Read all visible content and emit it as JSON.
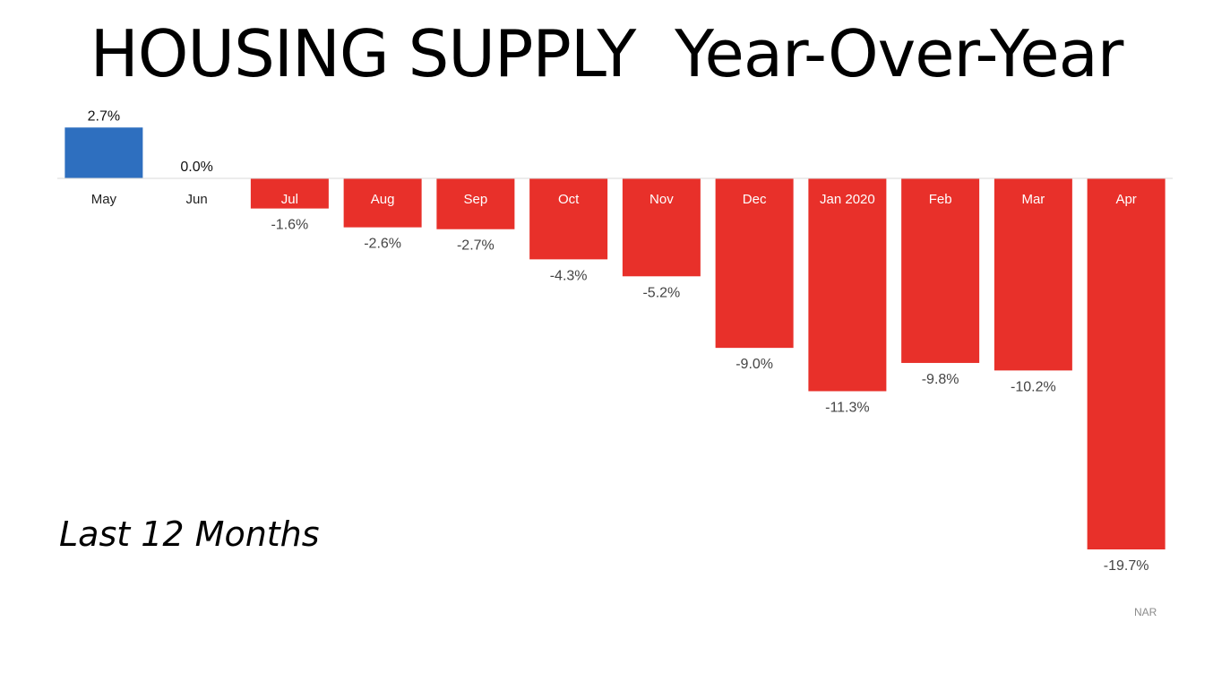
{
  "header": {
    "title": "HOUSING SUPPLY  Year-Over-Year"
  },
  "subtitle": "Last 12 Months",
  "source": "NAR",
  "chart_data": {
    "type": "bar",
    "title": "HOUSING SUPPLY  Year-Over-Year",
    "categories": [
      "May",
      "Jun",
      "Jul",
      "Aug",
      "Sep",
      "Oct",
      "Nov",
      "Dec",
      "Jan 2020",
      "Feb",
      "Mar",
      "Apr"
    ],
    "values": [
      2.7,
      0.0,
      -1.6,
      -2.6,
      -2.7,
      -4.3,
      -5.2,
      -9.0,
      -11.3,
      -9.8,
      -10.2,
      -19.7
    ],
    "data_labels": [
      "2.7%",
      "0.0%",
      "-1.6%",
      "-2.6%",
      "-2.7%",
      "-4.3%",
      "-5.2%",
      "-9.0%",
      "-11.3%",
      "-9.8%",
      "-10.2%",
      "-19.7%"
    ],
    "xlabel": "",
    "ylabel": "",
    "ylim": [
      -19.7,
      2.7
    ],
    "grid": false,
    "legend": "none",
    "colors": {
      "positive": "#2e6fbf",
      "negative": "#e8302a",
      "axis": "#d9d9d9"
    }
  }
}
